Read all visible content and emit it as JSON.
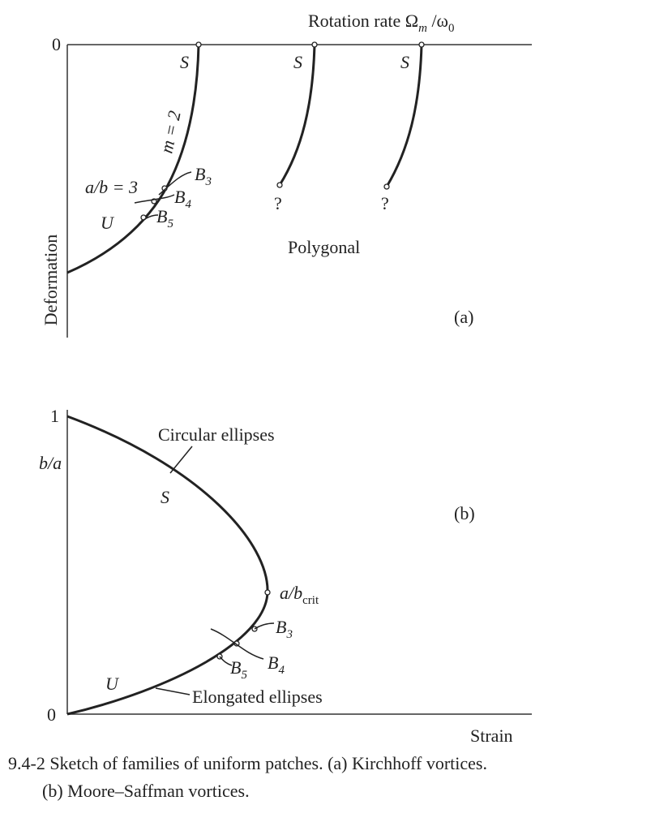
{
  "panel_a": {
    "axis_top": {
      "base": "Rotation rate Ω",
      "sub1": "m",
      "mid": " /ω",
      "sub2": "0"
    },
    "zero": "0",
    "axis_left": "Deformation",
    "s_labels": [
      "S",
      "S",
      "S"
    ],
    "m_label": "m = 2",
    "ab3": "a/b = 3",
    "b3": {
      "base": "B",
      "sub": "3"
    },
    "b4": {
      "base": "B",
      "sub": "4"
    },
    "b5": {
      "base": "B",
      "sub": "5"
    },
    "u": "U",
    "questions": [
      "?",
      "?"
    ],
    "polygonal": "Polygonal",
    "tag": "(a)"
  },
  "panel_b": {
    "one": "1",
    "zero": "0",
    "axis_left": "b/a",
    "circular": "Circular ellipses",
    "s": "S",
    "tag": "(b)",
    "crit": {
      "base": "a/b",
      "sub": "crit"
    },
    "b3": {
      "base": "B",
      "sub": "3"
    },
    "b4": {
      "base": "B",
      "sub": "4"
    },
    "b5": {
      "base": "B",
      "sub": "5"
    },
    "u": "U",
    "elongated": "Elongated ellipses",
    "axis_bottom": "Strain"
  },
  "caption": {
    "line1": "9.4-2 Sketch of families of uniform patches. (a) Kirchhoff vortices.",
    "line2": "(b) Moore–Saffman vortices."
  }
}
